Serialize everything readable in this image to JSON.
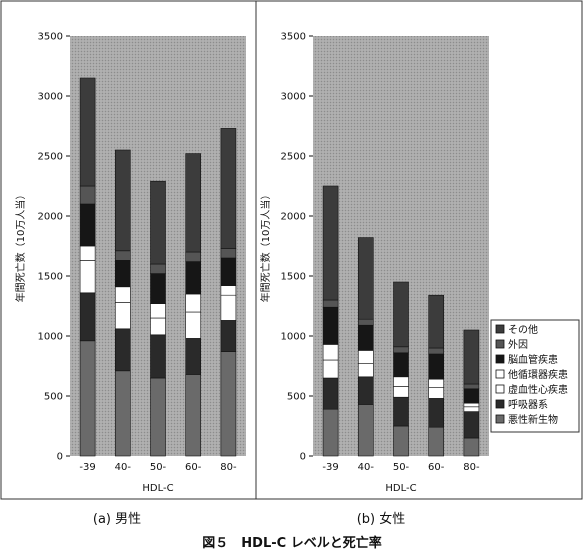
{
  "figure_caption": "図５　HDL-C レベルと死亡率",
  "legend": {
    "items": [
      {
        "label": "その他",
        "color": "#3c3c3c",
        "series": 6
      },
      {
        "label": "外因",
        "color": "#555555",
        "series": 5
      },
      {
        "label": "脳血管疾患",
        "color": "#161616",
        "series": 4
      },
      {
        "label": "他循環器疾患",
        "color": "#ffffff",
        "series": 3
      },
      {
        "label": "虚血性心疾患",
        "color": "#ffffff",
        "series": 2
      },
      {
        "label": "呼吸器系",
        "color": "#2a2a2a",
        "series": 1
      },
      {
        "label": "悪性新生物",
        "color": "#6a6a6a",
        "series": 0
      }
    ]
  },
  "chart_data": [
    {
      "type": "bar",
      "stacked": true,
      "caption": "(a)  男性",
      "xlabel": "HDL-C",
      "ylabel": "年間死亡数（10万人当）",
      "ylim": [
        0,
        3500
      ],
      "yticks": [
        0,
        500,
        1000,
        1500,
        2000,
        2500,
        3000,
        3500
      ],
      "categories": [
        "-39",
        "40-",
        "50-",
        "60-",
        "80-"
      ],
      "series": [
        {
          "name": "悪性新生物",
          "color": "#6a6a6a",
          "values": [
            960,
            710,
            650,
            680,
            870
          ]
        },
        {
          "name": "呼吸器系",
          "color": "#2a2a2a",
          "values": [
            400,
            350,
            360,
            300,
            260
          ]
        },
        {
          "name": "虚血性心疾患",
          "color": "#ffffff",
          "values": [
            270,
            220,
            140,
            220,
            210
          ]
        },
        {
          "name": "他循環器疾患",
          "color": "#ffffff",
          "values": [
            120,
            130,
            120,
            150,
            80
          ]
        },
        {
          "name": "脳血管疾患",
          "color": "#161616",
          "values": [
            350,
            220,
            250,
            270,
            230
          ]
        },
        {
          "name": "外因",
          "color": "#555555",
          "values": [
            150,
            80,
            80,
            80,
            80
          ]
        },
        {
          "name": "その他",
          "color": "#3c3c3c",
          "values": [
            900,
            840,
            690,
            820,
            1000
          ]
        }
      ],
      "totals": [
        3150,
        2550,
        2290,
        2520,
        2730
      ]
    },
    {
      "type": "bar",
      "stacked": true,
      "caption": "(b)  女性",
      "xlabel": "HDL-C",
      "ylabel": "年間死亡数（10万人当）",
      "ylim": [
        0,
        3500
      ],
      "yticks": [
        0,
        500,
        1000,
        1500,
        2000,
        2500,
        3000,
        3500
      ],
      "categories": [
        "-39",
        "40-",
        "50-",
        "60-",
        "80-"
      ],
      "series": [
        {
          "name": "悪性新生物",
          "color": "#6a6a6a",
          "values": [
            390,
            430,
            250,
            240,
            150
          ]
        },
        {
          "name": "呼吸器系",
          "color": "#2a2a2a",
          "values": [
            260,
            230,
            240,
            240,
            220
          ]
        },
        {
          "name": "虚血性心疾患",
          "color": "#ffffff",
          "values": [
            150,
            110,
            90,
            90,
            40
          ]
        },
        {
          "name": "他循環器疾患",
          "color": "#ffffff",
          "values": [
            130,
            110,
            80,
            70,
            30
          ]
        },
        {
          "name": "脳血管疾患",
          "color": "#161616",
          "values": [
            310,
            210,
            200,
            210,
            120
          ]
        },
        {
          "name": "外因",
          "color": "#555555",
          "values": [
            60,
            50,
            50,
            50,
            40
          ]
        },
        {
          "name": "その他",
          "color": "#3c3c3c",
          "values": [
            950,
            680,
            540,
            440,
            450
          ]
        }
      ],
      "totals": [
        2250,
        1820,
        1450,
        1340,
        1050
      ]
    }
  ]
}
